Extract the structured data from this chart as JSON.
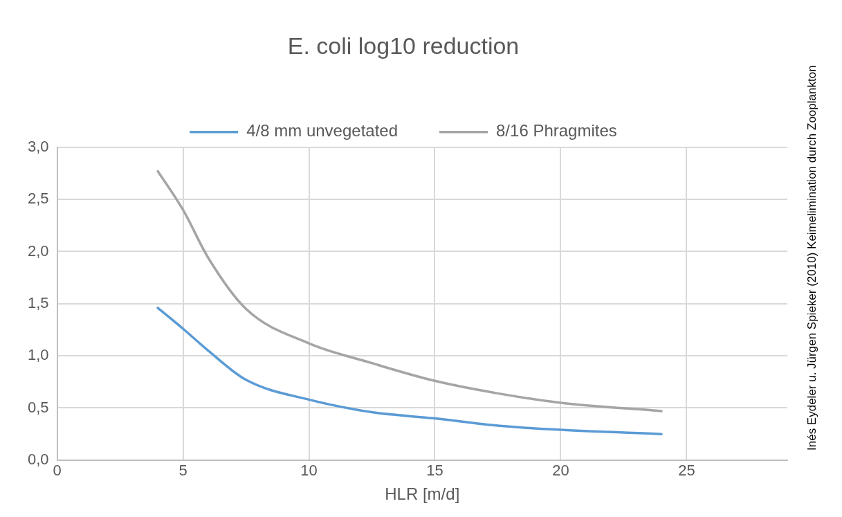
{
  "chart_data": {
    "type": "line",
    "title": "E. coli log10 reduction",
    "xlabel": "HLR [m/d]",
    "x": [
      4,
      5,
      6,
      7.5,
      10,
      12.5,
      15,
      17.5,
      20,
      24
    ],
    "series": [
      {
        "name": "4/8 mm unvegetated",
        "color": "#5b9bd5",
        "values": [
          1.46,
          1.26,
          1.05,
          0.77,
          0.58,
          0.46,
          0.4,
          0.33,
          0.29,
          0.25
        ]
      },
      {
        "name": "8/16 Phragmites",
        "color": "#a5a5a5",
        "values": [
          2.77,
          2.4,
          1.94,
          1.45,
          1.12,
          0.93,
          0.76,
          0.64,
          0.55,
          0.47
        ]
      }
    ],
    "xlim": [
      0,
      29
    ],
    "xticks": [
      0,
      5,
      10,
      15,
      20,
      25
    ],
    "ylim": [
      0,
      3
    ],
    "yticks": [
      {
        "value": 0,
        "label": "0,0"
      },
      {
        "value": 0.5,
        "label": "0,5"
      },
      {
        "value": 1,
        "label": "1,0"
      },
      {
        "value": 1.5,
        "label": "1,5"
      },
      {
        "value": 2,
        "label": "2,0"
      },
      {
        "value": 2.5,
        "label": "2,5"
      },
      {
        "value": 3,
        "label": "3,0"
      }
    ],
    "grid": true,
    "legend": "top",
    "marker": "none",
    "line_style": "solid",
    "annotations": [
      "Inés Eydeler u. Jürgen Spieker (2010) Keimelimination durch Zooplankton"
    ]
  }
}
